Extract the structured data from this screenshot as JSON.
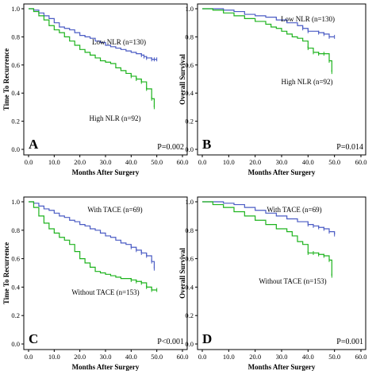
{
  "chart_data": [
    {
      "type": "line",
      "panel": "A",
      "p_value": "P=0.002",
      "xlabel": "Months After Surgery",
      "ylabel": "Time To Recurrence",
      "xlim": [
        0,
        60
      ],
      "ylim": [
        0,
        1
      ],
      "xticks": [
        "0.0",
        "10.0",
        "20.0",
        "30.0",
        "40.0",
        "50.0",
        "60.0"
      ],
      "yticks": [
        "0.0",
        "0.2",
        "0.4",
        "0.6",
        "0.8",
        "1.0"
      ],
      "series": [
        {
          "name": "Low NLR (n=130)",
          "color": "#4a5bc4",
          "x": [
            0,
            2,
            4,
            6,
            8,
            10,
            12,
            14,
            16,
            18,
            20,
            22,
            24,
            26,
            28,
            30,
            32,
            34,
            36,
            38,
            40,
            42,
            44,
            45,
            46,
            48,
            49,
            50
          ],
          "y": [
            1.0,
            0.99,
            0.97,
            0.95,
            0.93,
            0.9,
            0.87,
            0.86,
            0.85,
            0.83,
            0.81,
            0.8,
            0.79,
            0.77,
            0.76,
            0.74,
            0.73,
            0.72,
            0.71,
            0.7,
            0.69,
            0.68,
            0.67,
            0.66,
            0.65,
            0.64,
            0.64,
            0.64
          ]
        },
        {
          "name": "High NLR (n=92)",
          "color": "#1db31d",
          "x": [
            0,
            2,
            4,
            6,
            8,
            10,
            12,
            14,
            16,
            18,
            20,
            22,
            24,
            26,
            28,
            30,
            32,
            34,
            36,
            38,
            40,
            42,
            44,
            46,
            48,
            49
          ],
          "y": [
            1.0,
            0.98,
            0.95,
            0.92,
            0.88,
            0.85,
            0.83,
            0.8,
            0.77,
            0.74,
            0.71,
            0.69,
            0.67,
            0.65,
            0.63,
            0.62,
            0.61,
            0.58,
            0.56,
            0.54,
            0.52,
            0.5,
            0.48,
            0.43,
            0.36,
            0.3
          ]
        }
      ]
    },
    {
      "type": "line",
      "panel": "B",
      "p_value": "P=0.014",
      "xlabel": "Months After Surgery",
      "ylabel": "Overall Survival",
      "xlim": [
        0,
        60
      ],
      "ylim": [
        0,
        1
      ],
      "xticks": [
        "0.0",
        "10.0",
        "20.0",
        "30.0",
        "40.0",
        "50.0",
        "60.0"
      ],
      "yticks": [
        "0.0",
        "0.2",
        "0.4",
        "0.6",
        "0.8",
        "1.0"
      ],
      "series": [
        {
          "name": "Low NLR (n=130)",
          "color": "#4a5bc4",
          "x": [
            0,
            4,
            8,
            12,
            16,
            20,
            24,
            28,
            32,
            36,
            38,
            40,
            44,
            46,
            48,
            50
          ],
          "y": [
            1.0,
            1.0,
            0.99,
            0.98,
            0.96,
            0.95,
            0.94,
            0.92,
            0.9,
            0.88,
            0.86,
            0.84,
            0.83,
            0.82,
            0.8,
            0.8
          ]
        },
        {
          "name": "High NLR (n=92)",
          "color": "#1db31d",
          "x": [
            0,
            4,
            8,
            12,
            16,
            20,
            24,
            26,
            28,
            30,
            32,
            34,
            36,
            38,
            40,
            42,
            44,
            46,
            48,
            49
          ],
          "y": [
            1.0,
            0.99,
            0.97,
            0.95,
            0.93,
            0.91,
            0.89,
            0.87,
            0.86,
            0.84,
            0.82,
            0.8,
            0.79,
            0.77,
            0.72,
            0.69,
            0.68,
            0.68,
            0.63,
            0.55
          ]
        }
      ]
    },
    {
      "type": "line",
      "panel": "C",
      "p_value": "P<0.001",
      "xlabel": "Months After Surgery",
      "ylabel": "Time To Recurrence",
      "xlim": [
        0,
        60
      ],
      "ylim": [
        0,
        1
      ],
      "xticks": [
        "0.0",
        "10.0",
        "20.0",
        "30.0",
        "40.0",
        "50.0",
        "60.0"
      ],
      "yticks": [
        "0.0",
        "0.2",
        "0.4",
        "0.6",
        "0.8",
        "1.0"
      ],
      "series": [
        {
          "name": "With TACE (n=69)",
          "color": "#4a5bc4",
          "x": [
            0,
            2,
            4,
            6,
            8,
            10,
            12,
            14,
            16,
            18,
            20,
            22,
            24,
            26,
            28,
            30,
            32,
            34,
            36,
            38,
            40,
            42,
            44,
            46,
            48,
            49
          ],
          "y": [
            1.0,
            0.99,
            0.97,
            0.95,
            0.94,
            0.92,
            0.9,
            0.89,
            0.87,
            0.86,
            0.84,
            0.83,
            0.81,
            0.8,
            0.78,
            0.76,
            0.75,
            0.73,
            0.71,
            0.7,
            0.68,
            0.66,
            0.64,
            0.62,
            0.58,
            0.53
          ]
        },
        {
          "name": "Without TACE (n=153)",
          "color": "#1db31d",
          "x": [
            0,
            2,
            4,
            6,
            8,
            10,
            12,
            14,
            16,
            18,
            20,
            22,
            24,
            26,
            28,
            30,
            32,
            34,
            36,
            38,
            40,
            42,
            44,
            46,
            48,
            50
          ],
          "y": [
            1.0,
            0.96,
            0.9,
            0.85,
            0.81,
            0.78,
            0.75,
            0.73,
            0.7,
            0.65,
            0.6,
            0.57,
            0.54,
            0.51,
            0.5,
            0.49,
            0.48,
            0.47,
            0.46,
            0.46,
            0.45,
            0.44,
            0.43,
            0.4,
            0.38,
            0.38
          ]
        }
      ]
    },
    {
      "type": "line",
      "panel": "D",
      "p_value": "P=0.001",
      "xlabel": "Months After Surgery",
      "ylabel": "Overall Survival",
      "xlim": [
        0,
        60
      ],
      "ylim": [
        0,
        1
      ],
      "xticks": [
        "0.0",
        "10.0",
        "20.0",
        "30.0",
        "40.0",
        "50.0",
        "60.0"
      ],
      "yticks": [
        "0.0",
        "0.2",
        "0.4",
        "0.6",
        "0.8",
        "1.0"
      ],
      "series": [
        {
          "name": "With TACE (n=69)",
          "color": "#4a5bc4",
          "x": [
            0,
            4,
            8,
            12,
            16,
            20,
            24,
            28,
            32,
            36,
            40,
            42,
            44,
            46,
            48,
            50
          ],
          "y": [
            1.0,
            1.0,
            0.99,
            0.98,
            0.96,
            0.94,
            0.92,
            0.9,
            0.88,
            0.86,
            0.84,
            0.83,
            0.82,
            0.81,
            0.79,
            0.77
          ]
        },
        {
          "name": "Without TACE (n=153)",
          "color": "#1db31d",
          "x": [
            0,
            4,
            8,
            12,
            16,
            20,
            24,
            28,
            32,
            34,
            36,
            38,
            40,
            42,
            44,
            46,
            48,
            49
          ],
          "y": [
            1.0,
            0.98,
            0.96,
            0.93,
            0.9,
            0.87,
            0.84,
            0.81,
            0.79,
            0.76,
            0.72,
            0.7,
            0.64,
            0.64,
            0.63,
            0.62,
            0.59,
            0.48
          ]
        }
      ]
    }
  ]
}
